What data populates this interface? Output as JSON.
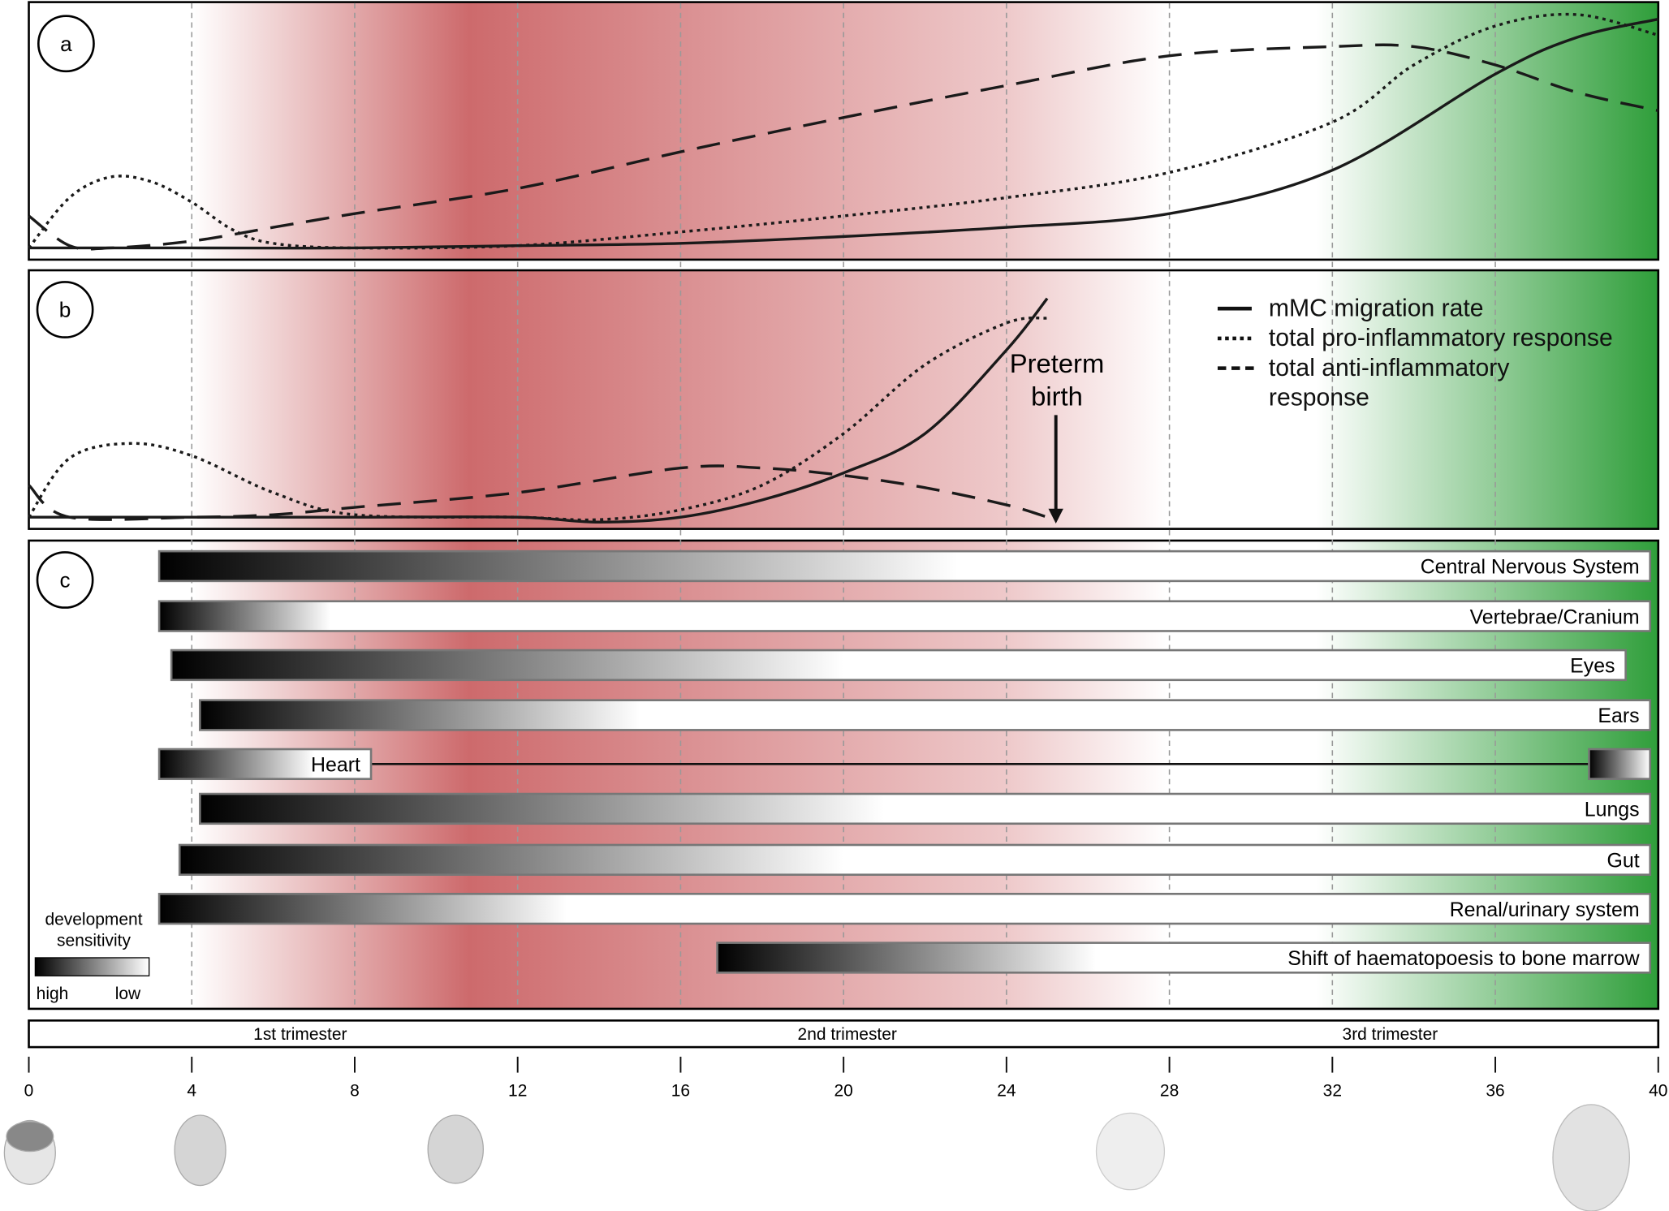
{
  "panels": {
    "a": "a",
    "b": "b",
    "c": "c"
  },
  "legend": {
    "solid": "mMC migration rate",
    "dotted": "total pro-inflammatory response",
    "dashed_line1": "total anti-inflammatory",
    "dashed_line2": "response"
  },
  "preterm": {
    "line1": "Preterm",
    "line2": "birth",
    "week": 25.2
  },
  "sensitivity_legend": {
    "title1": "development",
    "title2": "sensitivity",
    "high": "high",
    "low": "low"
  },
  "trimesters": [
    "1st trimester",
    "2nd trimester",
    "3rd trimester"
  ],
  "colors": {
    "red": "#cd6a6c",
    "green": "#2f9e3a",
    "line": "#1a1a1a"
  },
  "chart_data": {
    "type": "line",
    "x_unit": "gestational week",
    "xlim": [
      0,
      40
    ],
    "x_ticks": [
      "0",
      "4",
      "8",
      "12",
      "16",
      "20",
      "24",
      "28",
      "32",
      "36",
      "40"
    ],
    "panel_a": {
      "series": [
        {
          "name": "mMC migration rate",
          "style": "solid",
          "x": [
            0,
            4,
            8,
            12,
            16,
            20,
            24,
            28,
            32,
            36,
            38,
            40
          ],
          "y": [
            0,
            0,
            0,
            0.01,
            0.02,
            0.05,
            0.09,
            0.15,
            0.34,
            0.76,
            0.92,
            1.0
          ]
        },
        {
          "name": "total pro-inflammatory response",
          "style": "dotted",
          "x": [
            0,
            1,
            2,
            3,
            4,
            5,
            6,
            8,
            12,
            16,
            20,
            24,
            28,
            32,
            34,
            36,
            38,
            40
          ],
          "y": [
            0,
            0.22,
            0.31,
            0.29,
            0.2,
            0.08,
            0.02,
            0,
            0.01,
            0.07,
            0.14,
            0.22,
            0.33,
            0.55,
            0.8,
            0.97,
            1.02,
            0.93
          ]
        },
        {
          "name": "total anti-inflammatory response",
          "style": "dashed",
          "x": [
            0,
            1,
            2,
            4,
            6,
            8,
            12,
            16,
            20,
            24,
            28,
            32,
            34,
            36,
            38,
            40
          ],
          "y": [
            0.14,
            0.01,
            0,
            0.03,
            0.09,
            0.15,
            0.26,
            0.42,
            0.57,
            0.71,
            0.84,
            0.88,
            0.88,
            0.8,
            0.68,
            0.6
          ]
        }
      ]
    },
    "panel_b": {
      "series": [
        {
          "name": "mMC migration rate",
          "style": "solid",
          "x": [
            0,
            4,
            8,
            12,
            14,
            16,
            18,
            20,
            22,
            24,
            25
          ],
          "y": [
            0,
            0,
            0,
            0,
            -0.02,
            0,
            0.07,
            0.18,
            0.34,
            0.68,
            0.89
          ]
        },
        {
          "name": "total pro-inflammatory response",
          "style": "dotted",
          "x": [
            0,
            1,
            2.5,
            4,
            6,
            8,
            12,
            14,
            16,
            18,
            20,
            22,
            24,
            25
          ],
          "y": [
            0,
            0.24,
            0.3,
            0.25,
            0.1,
            0.01,
            0,
            -0.01,
            0.03,
            0.13,
            0.34,
            0.62,
            0.79,
            0.81
          ]
        },
        {
          "name": "total anti-inflammatory response",
          "style": "dashed",
          "x": [
            0,
            1,
            4,
            6,
            8,
            12,
            16,
            18,
            20,
            22,
            24,
            25
          ],
          "y": [
            0.13,
            0,
            0,
            0.01,
            0.04,
            0.1,
            0.2,
            0.2,
            0.17,
            0.12,
            0.05,
            0
          ]
        }
      ]
    },
    "panel_c": {
      "bars": [
        {
          "label": "Central Nervous System",
          "start": 3.2,
          "sensitive_until": 22.8,
          "end": 39.8
        },
        {
          "label": "Vertebrae/Cranium",
          "start": 3.2,
          "sensitive_until": 7.4,
          "end": 39.8
        },
        {
          "label": "Eyes",
          "start": 3.5,
          "sensitive_until": 20,
          "end": 39.2
        },
        {
          "label": "Ears",
          "start": 4.2,
          "sensitive_until": 15,
          "end": 39.8
        },
        {
          "label": "Heart",
          "start": 3.2,
          "sensitive_until": 7,
          "end": 8.4,
          "late_start": 38.3,
          "late_end": 39.8
        },
        {
          "label": "Lungs",
          "start": 4.2,
          "sensitive_until": 21,
          "end": 39.8
        },
        {
          "label": "Gut",
          "start": 3.7,
          "sensitive_until": 20,
          "end": 39.8
        },
        {
          "label": "Renal/urinary system",
          "start": 3.2,
          "sensitive_until": 13.2,
          "end": 39.8
        },
        {
          "label": "Shift of haematopoesis to bone marrow",
          "start": 16.9,
          "sensitive_until": 26.2,
          "end": 39.8
        }
      ]
    }
  }
}
